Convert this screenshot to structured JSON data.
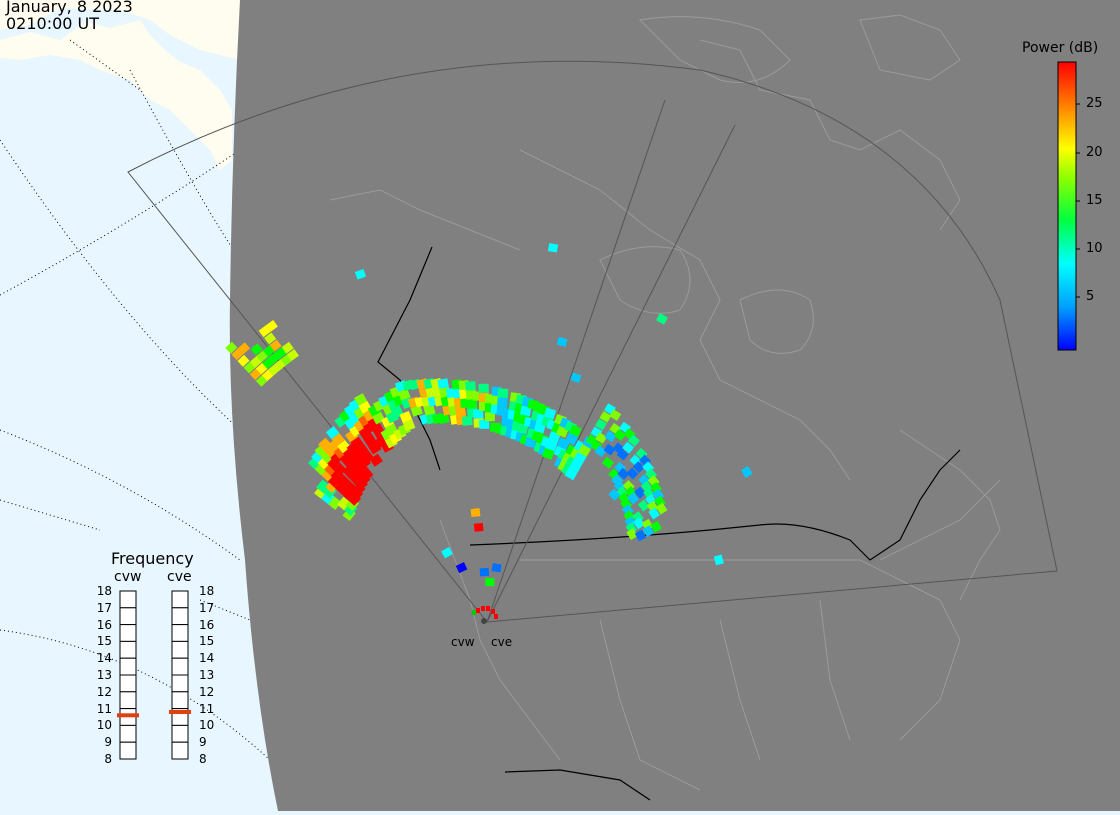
{
  "header": {
    "date": "January, 8 2023",
    "time": "0210:00 UT"
  },
  "colorbar": {
    "title": "Power (dB)",
    "ticks": [
      "25",
      "20",
      "15",
      "10",
      "5"
    ],
    "range": [
      0,
      29
    ]
  },
  "radars": {
    "west": "cvw",
    "east": "cve"
  },
  "frequency": {
    "title": "Frequency",
    "axis_labels": [
      "18",
      "17",
      "16",
      "15",
      "14",
      "13",
      "12",
      "11",
      "10",
      "9",
      "8"
    ],
    "cvw_value_mhz": 10.6,
    "cve_value_mhz": 10.8,
    "marker_color": "#e04010"
  },
  "colors": {
    "night": "#808080",
    "day_ocean": "#e8f6ff",
    "land": "#fffdf0",
    "high_power": "#ff0000"
  }
}
